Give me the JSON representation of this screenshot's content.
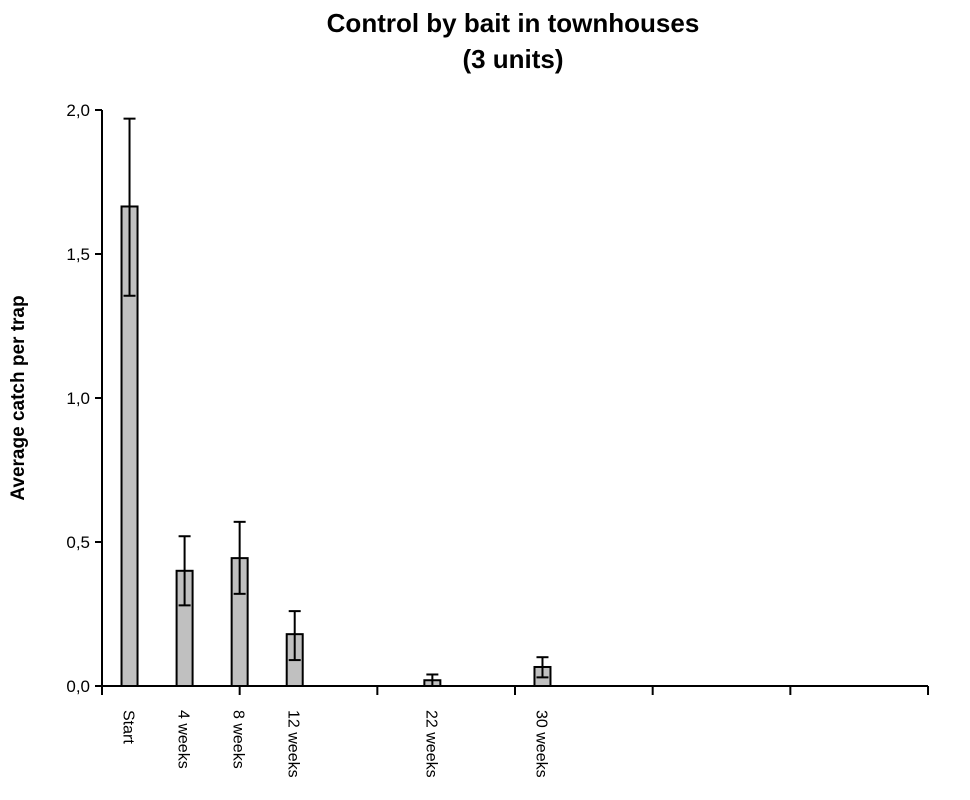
{
  "chart_data": {
    "type": "bar",
    "title": "Control by bait in townhouses",
    "subtitle": "(3 units)",
    "xlabel": "",
    "ylabel": "Average catch per trap",
    "ylim": [
      0,
      2.0
    ],
    "yticks": [
      "0,0",
      "0,5",
      "1,0",
      "1,5",
      "2,0"
    ],
    "ytick_values": [
      0,
      0.5,
      1.0,
      1.5,
      2.0
    ],
    "grid": false,
    "categories": [
      "Start",
      "4 weeks",
      "8 weeks",
      "12 weeks",
      "22 weeks",
      "30 weeks"
    ],
    "values": [
      1.665,
      0.4,
      0.444,
      0.18,
      0.02,
      0.066
    ],
    "error_low": [
      1.355,
      0.28,
      0.32,
      0.09,
      0.0,
      0.03
    ],
    "error_high": [
      1.97,
      0.52,
      0.57,
      0.26,
      0.04,
      0.1
    ],
    "bar_color": "#c0c0c0"
  }
}
